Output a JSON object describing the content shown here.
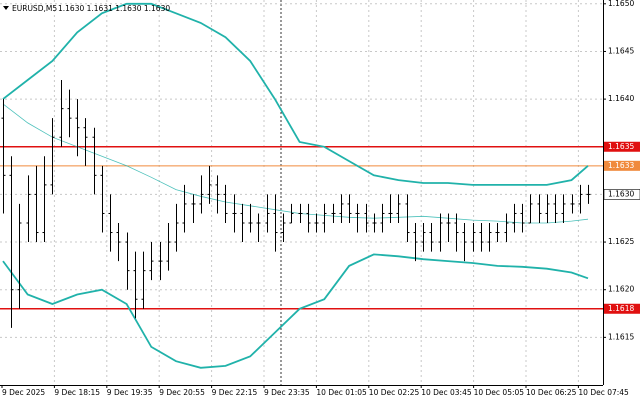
{
  "chart_data": {
    "type": "ohlc",
    "title": "EURUSD,M5",
    "quote": "1.1630 1.1631 1.1630 1.1630",
    "categories": [
      "9 Dec 2025",
      "9 Dec 18:15",
      "9 Dec 19:35",
      "9 Dec 20:55",
      "9 Dec 22:15",
      "9 Dec 23:35",
      "10 Dec 01:05",
      "10 Dec 02:25",
      "10 Dec 03:45",
      "10 Dec 05:05",
      "10 Dec 06:25",
      "10 Dec 07:45"
    ],
    "open": [
      1.1638,
      1.1632,
      1.162,
      1.1627,
      1.163,
      1.1626,
      1.1631,
      1.1636,
      1.1639,
      1.1638,
      1.1637,
      1.1636,
      1.1632,
      1.1628,
      1.1626,
      1.1625,
      1.1622,
      1.1619,
      1.1622,
      1.1623,
      1.1623,
      1.1625,
      1.1627,
      1.1629,
      1.1629,
      1.163,
      1.1631,
      1.163,
      1.1628,
      1.1628,
      1.1627,
      1.1627,
      1.1627,
      1.1628,
      1.1626,
      1.1627,
      1.1628,
      1.1628,
      1.1627,
      1.1627,
      1.1628,
      1.1628,
      1.1629,
      1.1628,
      1.1628,
      1.1627,
      1.1627,
      1.1628,
      1.1628,
      1.1629,
      1.1626,
      1.1625,
      1.1626,
      1.1625,
      1.1627,
      1.1627,
      1.1626,
      1.1625,
      1.1626,
      1.1625,
      1.1626,
      1.1626,
      1.1627,
      1.1628,
      1.1627,
      1.1629,
      1.1628,
      1.1629,
      1.1628,
      1.1629,
      1.1629,
      1.163
    ],
    "high": [
      1.164,
      1.1634,
      1.1629,
      1.1632,
      1.1633,
      1.1634,
      1.1638,
      1.1642,
      1.1641,
      1.164,
      1.1638,
      1.1637,
      1.1633,
      1.163,
      1.1627,
      1.1626,
      1.1624,
      1.1624,
      1.1625,
      1.1625,
      1.1627,
      1.1629,
      1.1631,
      1.163,
      1.1632,
      1.1633,
      1.1632,
      1.1631,
      1.163,
      1.1629,
      1.1629,
      1.1628,
      1.163,
      1.163,
      1.1628,
      1.1629,
      1.1629,
      1.1629,
      1.1628,
      1.1629,
      1.1629,
      1.163,
      1.163,
      1.1629,
      1.1629,
      1.1628,
      1.1629,
      1.163,
      1.163,
      1.163,
      1.1627,
      1.1627,
      1.1627,
      1.1628,
      1.1628,
      1.1628,
      1.1627,
      1.1627,
      1.1627,
      1.1627,
      1.1627,
      1.1628,
      1.1629,
      1.1629,
      1.163,
      1.163,
      1.163,
      1.163,
      1.163,
      1.163,
      1.1631,
      1.1631
    ],
    "low": [
      1.1628,
      1.1616,
      1.1618,
      1.1625,
      1.1625,
      1.1625,
      1.163,
      1.1635,
      1.1636,
      1.1634,
      1.1633,
      1.163,
      1.1626,
      1.1624,
      1.1623,
      1.162,
      1.1617,
      1.1618,
      1.1621,
      1.1621,
      1.1622,
      1.1624,
      1.1626,
      1.1627,
      1.1628,
      1.1629,
      1.1628,
      1.1627,
      1.1626,
      1.1625,
      1.1626,
      1.1625,
      1.1626,
      1.1624,
      1.1625,
      1.1627,
      1.1627,
      1.1626,
      1.1626,
      1.1626,
      1.1627,
      1.1627,
      1.1627,
      1.1626,
      1.1626,
      1.1626,
      1.1626,
      1.1627,
      1.1627,
      1.1625,
      1.1623,
      1.1624,
      1.1624,
      1.1624,
      1.1625,
      1.1624,
      1.1623,
      1.1624,
      1.1624,
      1.1624,
      1.1625,
      1.1625,
      1.1626,
      1.1626,
      1.1627,
      1.1627,
      1.1627,
      1.1627,
      1.1627,
      1.1628,
      1.1628,
      1.1629
    ],
    "close": [
      1.1632,
      1.162,
      1.1627,
      1.163,
      1.1626,
      1.1631,
      1.1636,
      1.1639,
      1.1638,
      1.1637,
      1.1636,
      1.1632,
      1.1628,
      1.1626,
      1.1625,
      1.1622,
      1.1619,
      1.1622,
      1.1623,
      1.1623,
      1.1625,
      1.1627,
      1.1629,
      1.1629,
      1.163,
      1.1631,
      1.163,
      1.1628,
      1.1628,
      1.1627,
      1.1627,
      1.1627,
      1.1628,
      1.1626,
      1.1627,
      1.1628,
      1.1628,
      1.1627,
      1.1627,
      1.1628,
      1.1628,
      1.1629,
      1.1628,
      1.1628,
      1.1627,
      1.1627,
      1.1628,
      1.1628,
      1.1629,
      1.1626,
      1.1625,
      1.1626,
      1.1625,
      1.1627,
      1.1627,
      1.1626,
      1.1625,
      1.1626,
      1.1625,
      1.1626,
      1.1626,
      1.1627,
      1.1628,
      1.1627,
      1.1629,
      1.1628,
      1.1629,
      1.1628,
      1.1629,
      1.1629,
      1.163,
      1.163
    ],
    "bar_color": "#000000",
    "bands": {
      "color": "#20b2aa",
      "x": [
        0,
        3,
        6,
        9,
        12,
        15,
        18,
        21,
        24,
        27,
        30,
        33,
        36,
        39,
        42,
        45,
        48,
        51,
        54,
        57,
        60,
        63,
        66,
        69,
        71
      ],
      "upper": [
        1.164,
        1.1642,
        1.1644,
        1.1647,
        1.1649,
        1.165,
        1.165,
        1.1649,
        1.1648,
        1.16465,
        1.1644,
        1.164,
        1.16355,
        1.1635,
        1.16335,
        1.1632,
        1.16315,
        1.16312,
        1.16312,
        1.1631,
        1.1631,
        1.1631,
        1.1631,
        1.16315,
        1.1633
      ],
      "middle": [
        1.16395,
        1.16375,
        1.1636,
        1.1635,
        1.1634,
        1.1633,
        1.16318,
        1.16305,
        1.16298,
        1.16292,
        1.16288,
        1.16284,
        1.1628,
        1.16278,
        1.16276,
        1.16275,
        1.16276,
        1.16277,
        1.16275,
        1.16273,
        1.16272,
        1.1627,
        1.1627,
        1.16272,
        1.16274
      ],
      "lower": [
        1.1623,
        1.16195,
        1.16185,
        1.16195,
        1.162,
        1.16185,
        1.1614,
        1.16125,
        1.16118,
        1.1612,
        1.1613,
        1.16155,
        1.1618,
        1.1619,
        1.16225,
        1.16237,
        1.16235,
        1.16232,
        1.1623,
        1.16228,
        1.16225,
        1.16224,
        1.16222,
        1.16218,
        1.16212
      ]
    },
    "levels": [
      {
        "value": 1.1635,
        "label": "1.1635",
        "color": "#e01010"
      },
      {
        "value": 1.1633,
        "label": "1.1633",
        "color": "#f08a3c"
      },
      {
        "value": 1.1618,
        "label": "1.1618",
        "color": "#e01010"
      }
    ],
    "last_price": {
      "value": 1.163,
      "label": "1.1630"
    },
    "ylim": [
      1.161,
      1.16504
    ],
    "yticks": [
      1.1615,
      {
        "value": 1.162,
        "label": "1.1620"
      },
      1.1625,
      {
        "value": 1.163,
        "label": "1.1630"
      },
      1.1635,
      {
        "value": 1.164,
        "label": "1.1640"
      },
      1.1645,
      {
        "value": 1.165,
        "label": "1.1650"
      }
    ],
    "grid": true
  }
}
